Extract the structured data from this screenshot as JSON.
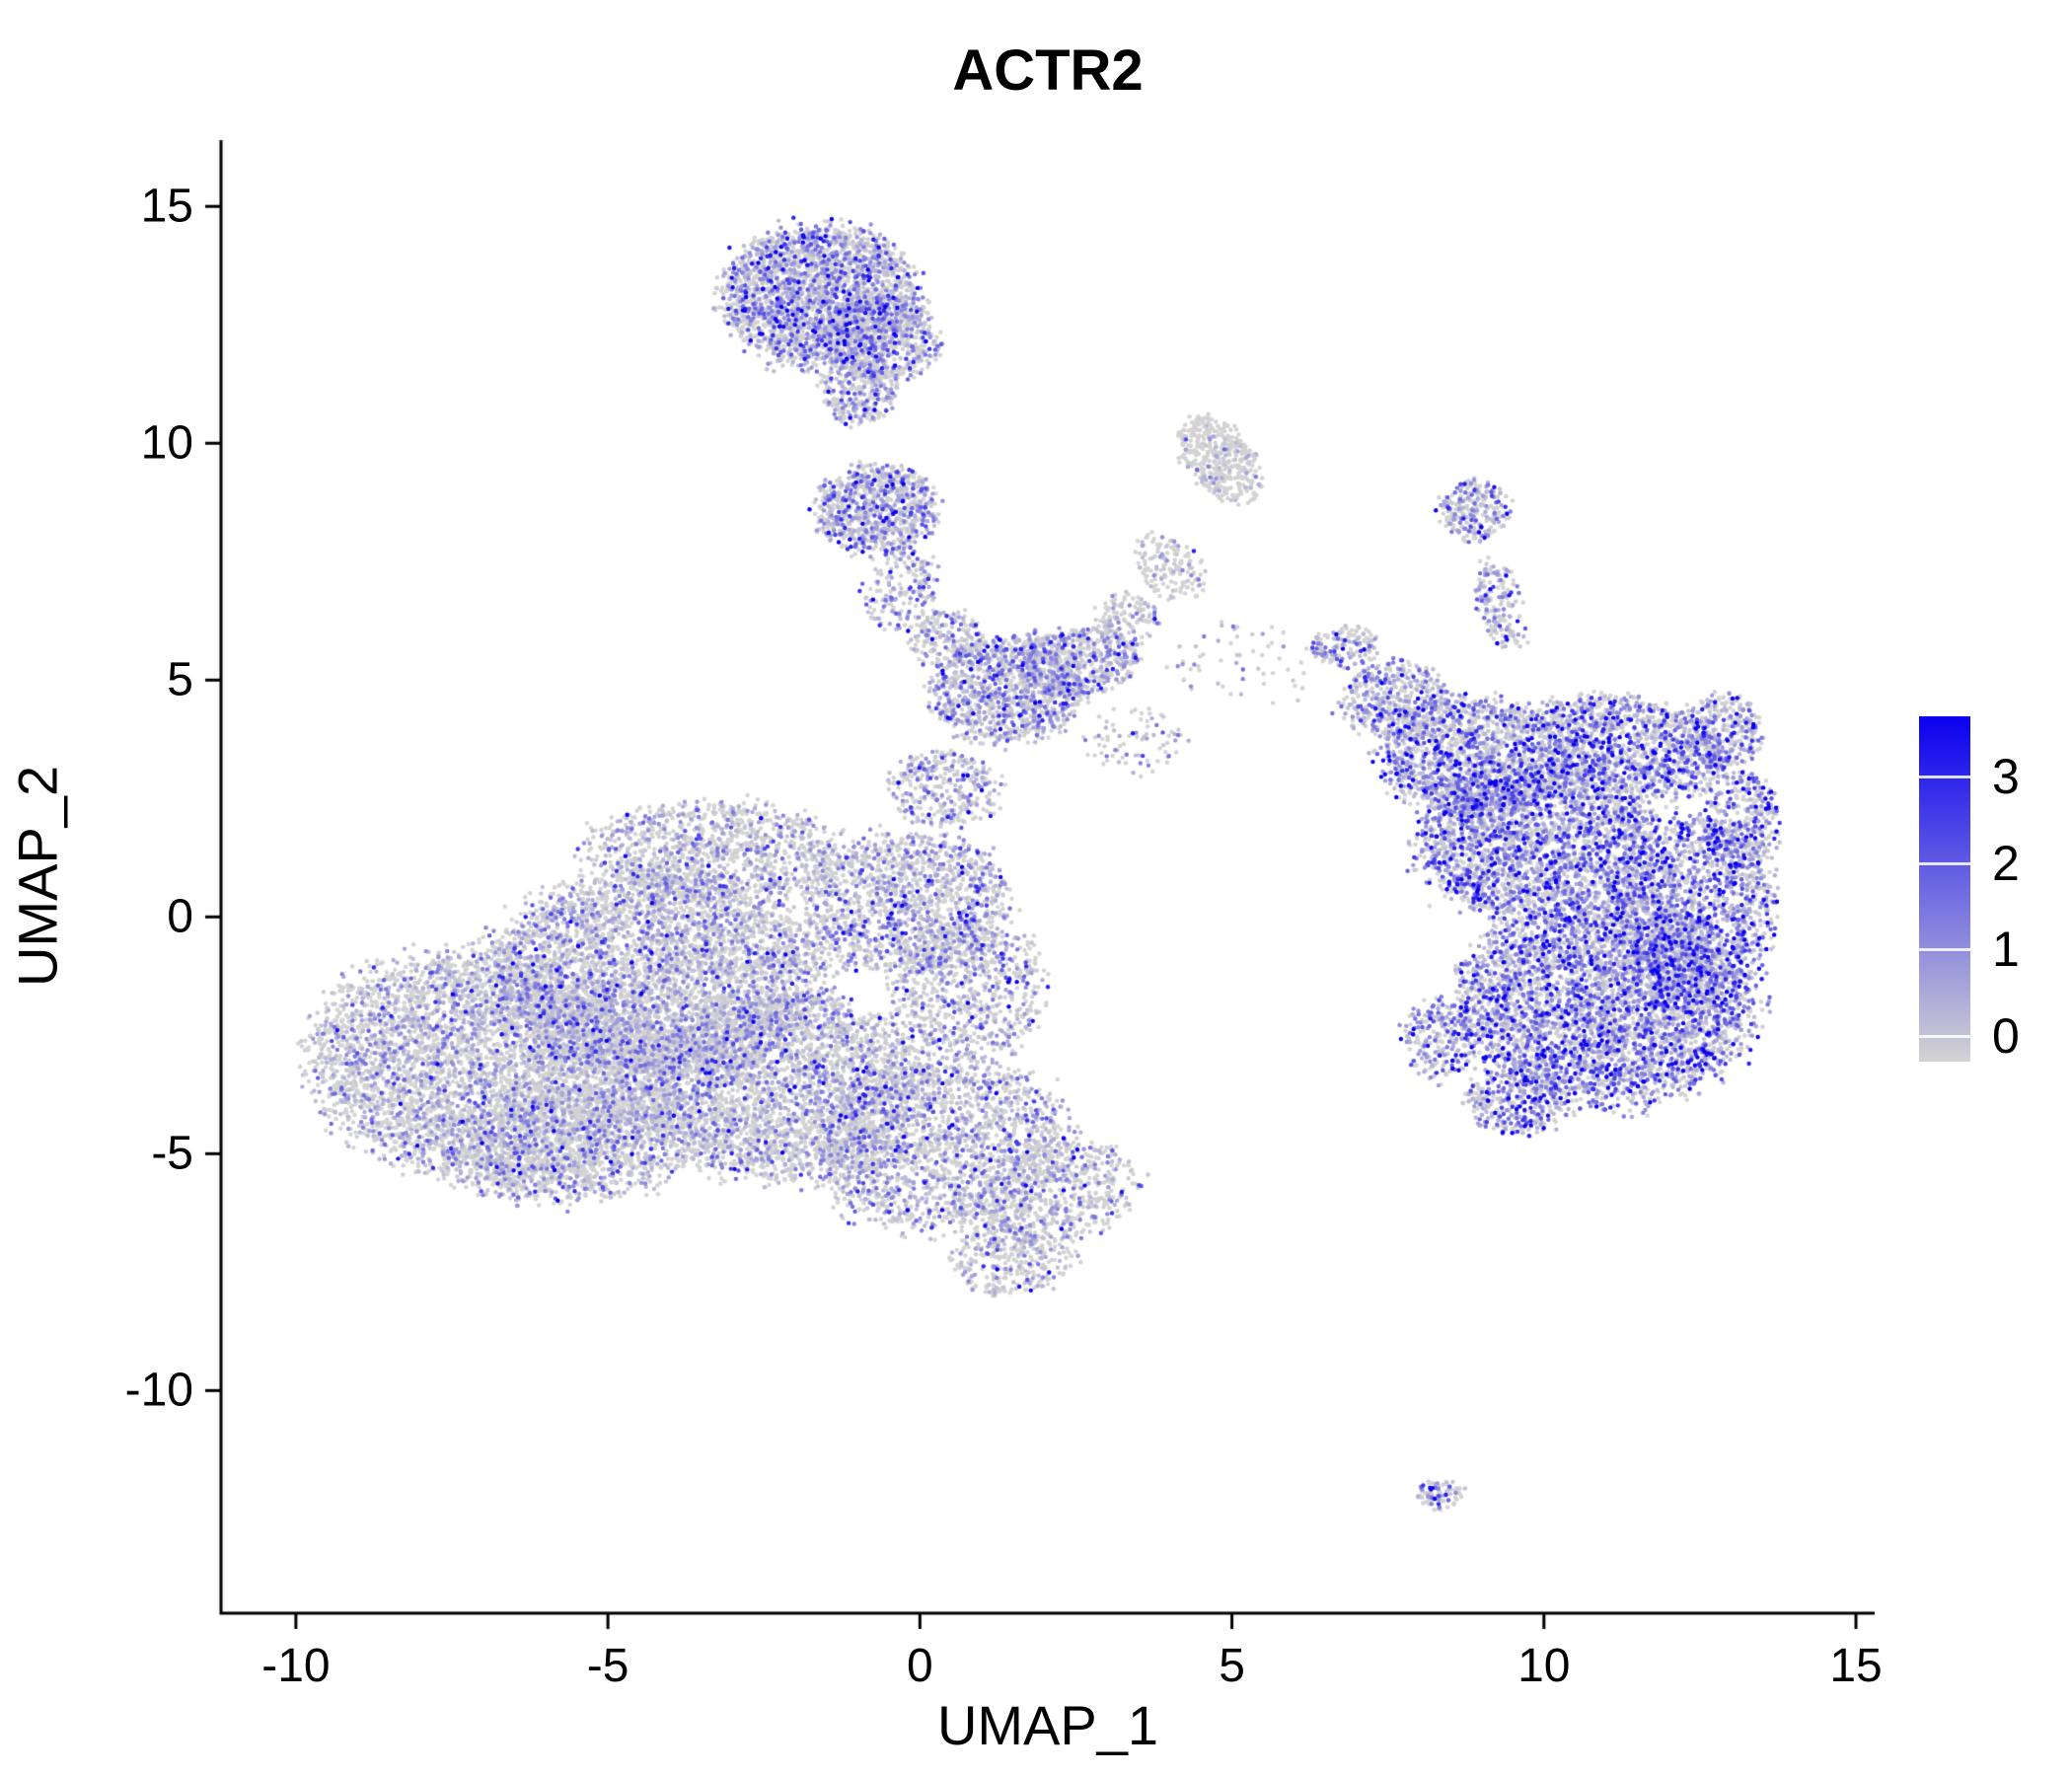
{
  "chart_data": {
    "type": "scatter",
    "title": "ACTR2",
    "xlabel": "UMAP_1",
    "ylabel": "UMAP_2",
    "xlim": [
      -11.2,
      15.3
    ],
    "ylim": [
      -14.7,
      16.4
    ],
    "x_ticks": [
      -10,
      -5,
      0,
      5,
      10,
      15
    ],
    "y_ticks": [
      15,
      10,
      5,
      0,
      -5,
      -10
    ],
    "grid": false,
    "background": "#ffffff",
    "axis_color": "#000000",
    "point_radius_px": 2.2,
    "color_low": "#d3d3d3",
    "color_high": "#0a00f0",
    "expr_max": 3.4,
    "legend": {
      "ticks": [
        3,
        2,
        1,
        0
      ],
      "vmin": -0.3,
      "vmax": 3.7,
      "low_color": "#d3d3d3",
      "high_color": "#0a00f0"
    },
    "clusters": {
      "fields": [
        "cx",
        "cy",
        "rx",
        "ry",
        "rot_deg",
        "n",
        "p0_frac_zero",
        "mean_expr"
      ],
      "rows": [
        [
          -6.8,
          -3.2,
          2.9,
          2.3,
          -15,
          5000,
          0.58,
          0.75
        ],
        [
          -4.2,
          -1.2,
          2.6,
          2.1,
          0,
          4300,
          0.55,
          0.8
        ],
        [
          -2.2,
          -3.6,
          2.2,
          1.9,
          0,
          3000,
          0.55,
          0.8
        ],
        [
          -5.5,
          -4.8,
          2.0,
          1.2,
          10,
          1300,
          0.6,
          0.7
        ],
        [
          0.3,
          -4.8,
          2.0,
          1.7,
          20,
          1900,
          0.52,
          0.85
        ],
        [
          2.2,
          -5.8,
          1.3,
          1.0,
          30,
          600,
          0.55,
          0.8
        ],
        [
          -3.3,
          1.4,
          2.0,
          1.0,
          0,
          1100,
          0.55,
          0.8
        ],
        [
          -0.2,
          0.3,
          1.6,
          1.5,
          0,
          1400,
          0.5,
          0.9
        ],
        [
          0.8,
          -1.5,
          1.2,
          1.5,
          0,
          800,
          0.5,
          0.9
        ],
        [
          1.5,
          -7.2,
          1.0,
          0.8,
          15,
          350,
          0.6,
          0.7
        ],
        [
          0.4,
          2.7,
          0.9,
          0.8,
          0,
          350,
          0.5,
          0.85
        ],
        [
          1.4,
          4.8,
          1.2,
          1.1,
          20,
          1100,
          0.45,
          0.95
        ],
        [
          2.5,
          5.4,
          1.0,
          0.7,
          10,
          600,
          0.45,
          0.95
        ],
        [
          -0.3,
          6.9,
          0.55,
          0.8,
          -20,
          180,
          0.5,
          0.9
        ],
        [
          0.4,
          5.9,
          0.6,
          0.6,
          0,
          200,
          0.5,
          0.9
        ],
        [
          3.3,
          6.3,
          0.5,
          0.5,
          0,
          120,
          0.55,
          0.8
        ],
        [
          4.0,
          7.4,
          0.5,
          0.7,
          30,
          150,
          0.7,
          0.6
        ],
        [
          3.4,
          3.7,
          0.9,
          0.7,
          0,
          80,
          0.5,
          0.9
        ],
        [
          5.2,
          5.3,
          1.2,
          0.9,
          0,
          60,
          0.5,
          0.9
        ],
        [
          -1.6,
          13.1,
          1.55,
          1.45,
          0,
          2600,
          0.42,
          1.0
        ],
        [
          -0.6,
          12.2,
          0.9,
          0.9,
          0,
          600,
          0.45,
          0.95
        ],
        [
          -1.0,
          11.1,
          0.6,
          0.7,
          0,
          300,
          0.5,
          0.9
        ],
        [
          -0.7,
          8.6,
          0.95,
          0.95,
          0,
          900,
          0.45,
          1.0
        ],
        [
          4.8,
          9.7,
          0.55,
          1.0,
          25,
          420,
          0.82,
          0.45
        ],
        [
          11.0,
          -1.8,
          2.3,
          2.1,
          0,
          4200,
          0.3,
          1.3
        ],
        [
          12.4,
          0.2,
          1.3,
          1.9,
          0,
          1500,
          0.3,
          1.3
        ],
        [
          9.9,
          1.6,
          1.9,
          1.6,
          0,
          2600,
          0.33,
          1.25
        ],
        [
          8.9,
          3.4,
          1.5,
          1.2,
          0,
          1500,
          0.35,
          1.2
        ],
        [
          11.4,
          3.6,
          1.5,
          1.0,
          -20,
          1200,
          0.35,
          1.25
        ],
        [
          12.9,
          3.9,
          0.6,
          0.8,
          0,
          300,
          0.35,
          1.3
        ],
        [
          13.2,
          2.0,
          0.6,
          1.0,
          0,
          350,
          0.3,
          1.3
        ],
        [
          7.6,
          4.6,
          0.85,
          0.8,
          0,
          450,
          0.4,
          1.1
        ],
        [
          6.8,
          5.7,
          0.5,
          0.45,
          0,
          140,
          0.45,
          1.0
        ],
        [
          9.3,
          6.6,
          0.35,
          1.0,
          10,
          170,
          0.45,
          1.0
        ],
        [
          8.9,
          8.6,
          0.55,
          0.65,
          0,
          260,
          0.45,
          1.1
        ],
        [
          8.3,
          -2.6,
          0.55,
          0.9,
          0,
          230,
          0.35,
          1.2
        ],
        [
          9.6,
          -3.9,
          0.8,
          0.7,
          0,
          350,
          0.3,
          1.4
        ],
        [
          8.3,
          -12.2,
          0.4,
          0.3,
          10,
          90,
          0.5,
          1.0
        ]
      ]
    }
  }
}
